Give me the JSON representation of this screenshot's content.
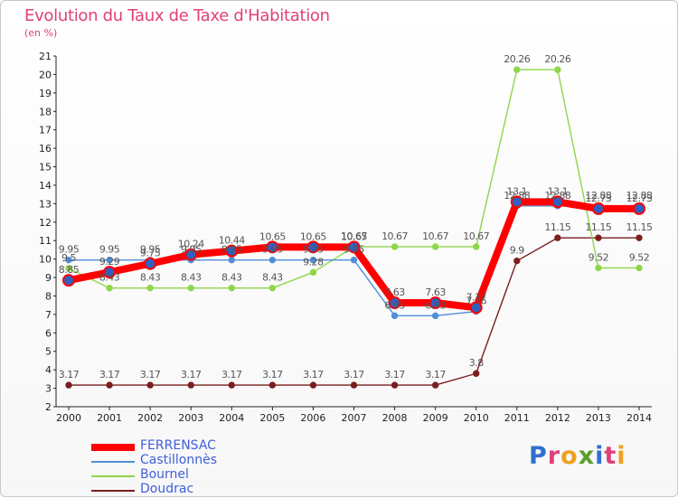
{
  "chart_data": {
    "type": "line",
    "title": "Evolution du Taux de Taxe d'Habitation",
    "subtitle": "(en %)",
    "x": [
      "2000",
      "2001",
      "2002",
      "2003",
      "2004",
      "2005",
      "2006",
      "2007",
      "2008",
      "2009",
      "2010",
      "2011",
      "2012",
      "2013",
      "2014"
    ],
    "ylim": [
      2,
      21
    ],
    "yticks": [
      "2",
      "3",
      "4",
      "5",
      "6",
      "7",
      "8",
      "9",
      "10",
      "11",
      "12",
      "13",
      "14",
      "15",
      "16",
      "17",
      "18",
      "19",
      "20",
      "21"
    ],
    "grid": false,
    "legend_position": "bottom-left",
    "series": [
      {
        "name": "FERRENSAC",
        "color": "#ff0000",
        "values": [
          8.85,
          9.29,
          9.75,
          10.24,
          10.44,
          10.65,
          10.65,
          10.65,
          7.63,
          7.63,
          7.37,
          13.1,
          13.1,
          12.73,
          12.73
        ],
        "labels": [
          "8.85",
          "9.29",
          "9.75",
          "10.24",
          "10.44",
          "10.65",
          "10.65",
          "10.65",
          "7.63",
          "7.63",
          "7.37",
          "13.1",
          "13.1",
          "12.73",
          "12.73"
        ]
      },
      {
        "name": "Castillonnès",
        "color": "#4f8fd8",
        "values": [
          9.95,
          9.95,
          9.95,
          9.95,
          9.95,
          9.95,
          9.95,
          9.95,
          6.93,
          6.93,
          7.16,
          12.88,
          12.88,
          12.88,
          12.88
        ],
        "labels": [
          "9.95",
          "9.95",
          "9.95",
          "9.95",
          "9.95",
          "9.95",
          "9.95",
          "9.95",
          "6.93",
          "6.93",
          "7.16",
          "12.88",
          "12.88",
          "12.88",
          "12.88"
        ]
      },
      {
        "name": "Bournel",
        "color": "#8ed64a",
        "values": [
          9.5,
          8.43,
          8.43,
          8.43,
          8.43,
          8.43,
          9.28,
          10.67,
          10.67,
          10.67,
          10.67,
          20.26,
          20.26,
          9.52,
          9.52
        ],
        "labels": [
          "9.5",
          "8.43",
          "8.43",
          "8.43",
          "8.43",
          "8.43",
          "9.28",
          "10.67",
          "10.67",
          "10.67",
          "10.67",
          "20.26",
          "20.26",
          "9.52",
          "9.52"
        ]
      },
      {
        "name": "Doudrac",
        "color": "#7a1e1e",
        "values": [
          3.17,
          3.17,
          3.17,
          3.17,
          3.17,
          3.17,
          3.17,
          3.17,
          3.17,
          3.17,
          3.8,
          9.9,
          11.15,
          11.15,
          11.15
        ],
        "labels": [
          "3.17",
          "3.17",
          "3.17",
          "3.17",
          "3.17",
          "3.17",
          "3.17",
          "3.17",
          "3.17",
          "3.17",
          "3.8",
          "9.9",
          "11.15",
          "11.15",
          "11.15"
        ]
      }
    ]
  },
  "logo": {
    "letters": [
      "P",
      "r",
      "o",
      "x",
      "i",
      "t",
      "i"
    ],
    "colors": [
      "#2f6fd0",
      "#e0407a",
      "#f0a020",
      "#5aa02c",
      "#2f6fd0",
      "#e0407a",
      "#f0a020"
    ]
  }
}
